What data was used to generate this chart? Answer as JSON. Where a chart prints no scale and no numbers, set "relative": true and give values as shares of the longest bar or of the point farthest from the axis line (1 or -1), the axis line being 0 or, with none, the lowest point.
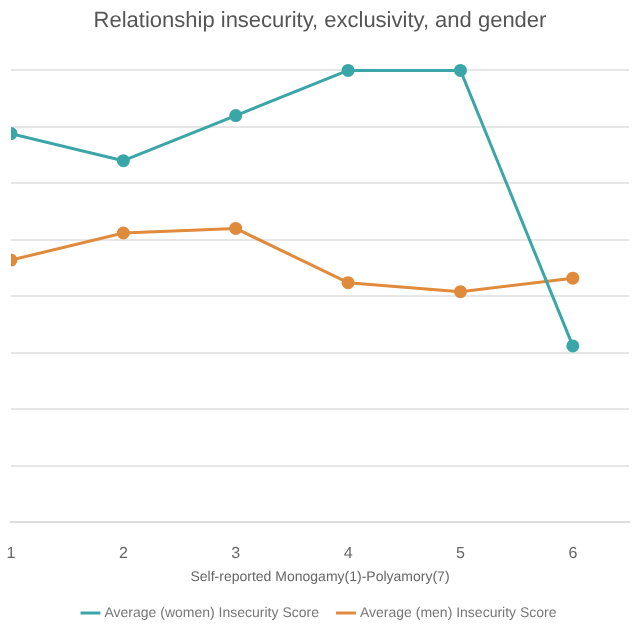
{
  "chart_data": {
    "type": "line",
    "title": "Relationship insecurity, exclusivity, and gender",
    "xlabel": "Self-reported Monogamy(1)-Polyamory(7)",
    "x": [
      1,
      2,
      3,
      4,
      5,
      6
    ],
    "xlim": [
      1,
      6.5
    ],
    "xticks": [
      1,
      2,
      3,
      4,
      5,
      6
    ],
    "relative": true,
    "grid": "y",
    "legend": "bottom",
    "marker": "circle",
    "line_style": "solid",
    "series": [
      {
        "name": "Average (women) Insecurity Score",
        "color": "#3aa6a8",
        "values": [
          0.86,
          0.8,
          0.9,
          1,
          1,
          0.39
        ]
      },
      {
        "name": "Average (men) Insecurity Score",
        "color": "#e08a3c",
        "values": [
          0.58,
          0.64,
          0.65,
          0.53,
          0.51,
          0.54
        ]
      }
    ]
  }
}
